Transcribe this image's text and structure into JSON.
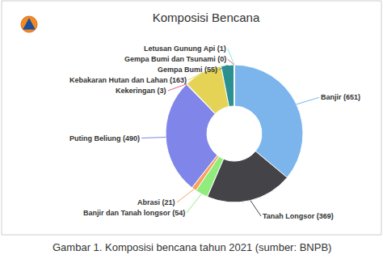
{
  "chart_data": {
    "type": "donut",
    "title": "Komposisi Bencana",
    "caption": "Gambar 1. Komposisi bencana tahun 2021 (sumber: BNPB)",
    "categories": [
      "Banjir",
      "Tanah Longsor",
      "Banjir dan Tanah longsor",
      "Abrasi",
      "Puting Beliung",
      "Kekeringan",
      "Kebakaran Hutan dan Lahan",
      "Gempa Bumi",
      "Gempa Bumi dan Tsunami",
      "Letusan Gunung Api"
    ],
    "values": [
      651,
      369,
      54,
      21,
      490,
      3,
      163,
      55,
      0,
      1
    ],
    "value_labels": [
      "Banjir (651)",
      "Tanah Longsor (369)",
      "Banjir dan Tanah longsor (54)",
      "Abrasi (21)",
      "Puting Beliung (490)",
      "Kekeringan (3)",
      "Kebakaran Hutan dan Lahan (163)",
      "Gempa Bumi (55)",
      "Gempa Bumi dan Tsunami (0)",
      "Letusan Gunung Api (1)"
    ],
    "colors": [
      "#7cb5ec",
      "#434348",
      "#90ed7d",
      "#f7a35c",
      "#8085e9",
      "#f15c80",
      "#e4d354",
      "#2b908f",
      "#f45b5b",
      "#91e8e1"
    ],
    "data_labels": true
  }
}
